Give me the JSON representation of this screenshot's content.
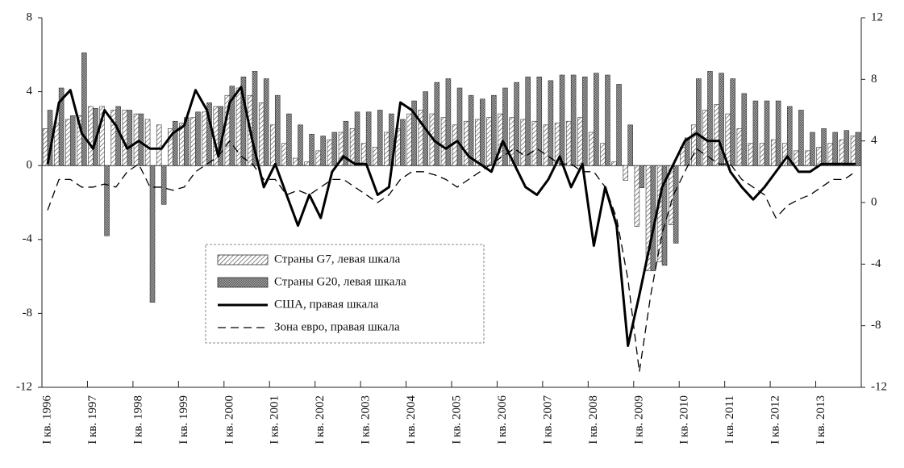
{
  "chart_data": {
    "type": "bar_line",
    "categories": [
      "I кв. 1996",
      null,
      null,
      null,
      "I кв. 1997",
      null,
      null,
      null,
      "I кв. 1998",
      null,
      null,
      null,
      "I кв. 1999",
      null,
      null,
      null,
      "I кв. 2000",
      null,
      null,
      null,
      "I кв. 2001",
      null,
      null,
      null,
      "I кв. 2002",
      null,
      null,
      null,
      "I кв. 2003",
      null,
      null,
      null,
      "I кв. 2004",
      null,
      null,
      null,
      "I кв. 2005",
      null,
      null,
      null,
      "I кв. 2006",
      null,
      null,
      null,
      "I кв. 2007",
      null,
      null,
      null,
      "I кв. 2008",
      null,
      null,
      null,
      "I кв. 2009",
      null,
      null,
      null,
      "I кв. 2010",
      null,
      null,
      null,
      "I кв. 2011",
      null,
      null,
      null,
      "I кв. 2012",
      null,
      null,
      null,
      "I кв. 2013",
      null,
      null,
      null
    ],
    "series": [
      {
        "name": "Страны G7, левая шкала",
        "kind": "bar",
        "axis": "y",
        "color": "#555555",
        "values": [
          2.0,
          2.3,
          2.5,
          2.7,
          3.2,
          3.2,
          3.0,
          3.0,
          2.8,
          2.5,
          2.2,
          2.0,
          2.3,
          2.6,
          2.9,
          3.2,
          3.8,
          4.2,
          3.8,
          3.4,
          2.2,
          1.2,
          0.4,
          0.2,
          0.8,
          1.4,
          1.8,
          2.0,
          1.2,
          1.0,
          1.8,
          2.0,
          2.8,
          3.0,
          2.8,
          2.6,
          2.2,
          2.4,
          2.5,
          2.6,
          2.8,
          2.6,
          2.5,
          2.4,
          2.2,
          2.3,
          2.4,
          2.6,
          1.8,
          1.2,
          0.2,
          -0.8,
          -3.3,
          -5.7,
          -5.2,
          -3.2,
          1.0,
          2.2,
          3.0,
          3.3,
          2.8,
          2.0,
          1.2,
          1.2,
          1.4,
          1.2,
          0.8,
          0.8,
          1.0,
          1.2,
          1.4,
          1.6
        ]
      },
      {
        "name": "Страны G20, левая шкала",
        "kind": "bar",
        "axis": "y",
        "color": "#888888",
        "values": [
          3.0,
          4.2,
          2.7,
          6.1,
          3.1,
          -3.8,
          3.2,
          3.0,
          2.8,
          -7.4,
          -2.1,
          2.4,
          2.6,
          2.9,
          3.4,
          3.2,
          4.3,
          4.8,
          5.1,
          4.7,
          3.8,
          2.8,
          2.2,
          1.7,
          1.6,
          1.8,
          2.4,
          2.9,
          2.9,
          3.0,
          2.8,
          2.5,
          3.5,
          4.0,
          4.5,
          4.7,
          4.2,
          3.8,
          3.6,
          3.8,
          4.2,
          4.5,
          4.8,
          4.8,
          4.6,
          4.9,
          4.9,
          4.8,
          5.0,
          4.9,
          4.4,
          2.2,
          -1.2,
          -5.7,
          -5.4,
          -4.2,
          1.5,
          4.7,
          5.1,
          5.0,
          4.7,
          3.9,
          3.5,
          3.5,
          3.5,
          3.2,
          3.0,
          1.8,
          2.0,
          1.8,
          1.9,
          1.8
        ]
      },
      {
        "name": "США, правая шкала",
        "kind": "line",
        "axis": "y2",
        "color": "#000000",
        "dashed": false,
        "values": [
          2.5,
          6.5,
          7.3,
          4.5,
          3.5,
          6.0,
          5.0,
          3.5,
          4.0,
          3.5,
          3.5,
          4.5,
          5.0,
          7.3,
          6.0,
          3.0,
          6.5,
          7.5,
          4.0,
          1.0,
          2.5,
          0.5,
          -1.5,
          0.5,
          -1.0,
          2.0,
          3.0,
          2.5,
          2.5,
          0.5,
          1.0,
          6.5,
          6.0,
          5.0,
          4.0,
          3.5,
          4.0,
          3.0,
          2.5,
          2.0,
          4.0,
          2.5,
          1.0,
          0.5,
          1.5,
          3.0,
          1.0,
          2.5,
          -2.8,
          1.0,
          -1.5,
          -9.3,
          -6.0,
          -2.5,
          1.0,
          2.5,
          4.0,
          4.5,
          4.0,
          4.0,
          2.0,
          1.0,
          0.2,
          1.0,
          2.0,
          3.0,
          2.0,
          2.0,
          2.5,
          2.5,
          2.5,
          2.5
        ]
      },
      {
        "name": "Зона евро, правая шкала",
        "kind": "line",
        "axis": "y2",
        "color": "#000000",
        "dashed": true,
        "values": [
          -0.5,
          1.5,
          1.5,
          1.0,
          1.0,
          1.2,
          1.0,
          2.0,
          2.5,
          1.0,
          1.0,
          0.8,
          1.0,
          2.0,
          2.5,
          3.0,
          4.0,
          3.0,
          2.5,
          1.5,
          1.5,
          0.5,
          0.8,
          0.5,
          1.0,
          1.5,
          1.5,
          1.0,
          0.5,
          0.0,
          0.5,
          1.5,
          2.0,
          2.0,
          1.8,
          1.5,
          1.0,
          1.5,
          2.0,
          2.5,
          3.0,
          3.5,
          3.0,
          3.5,
          3.0,
          2.5,
          2.5,
          2.0,
          2.0,
          1.0,
          -1.0,
          -5.0,
          -11.0,
          -6.0,
          -2.0,
          0.5,
          2.0,
          3.5,
          3.0,
          2.5,
          2.5,
          1.5,
          1.0,
          0.5,
          -1.0,
          -0.2,
          0.2,
          0.5,
          1.0,
          1.5,
          1.5,
          2.0
        ]
      }
    ],
    "ylim": [
      -12,
      8
    ],
    "yticks": [
      -12,
      -8,
      -4,
      0,
      4,
      8
    ],
    "y2lim": [
      -12,
      12
    ],
    "y2ticks": [
      -12,
      -8,
      -4,
      0,
      4,
      8,
      12
    ]
  }
}
